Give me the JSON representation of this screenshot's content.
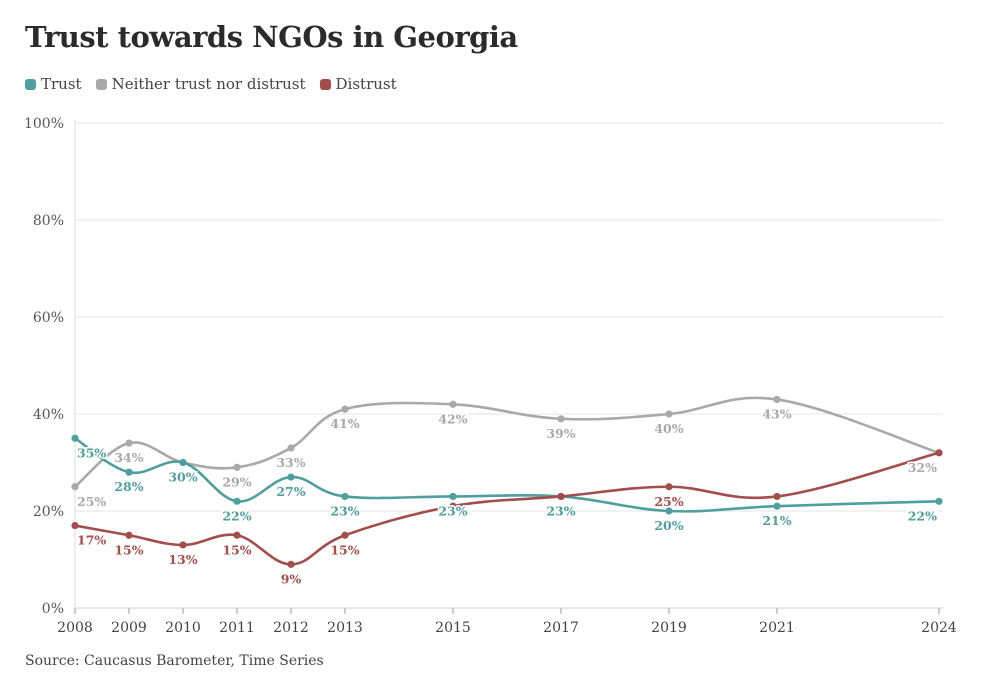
{
  "title": "Trust towards NGOs in Georgia",
  "source": "Source: Caucasus Barometer, Time Series",
  "chart_data": {
    "type": "line",
    "title": "Trust towards NGOs in Georgia",
    "xlabel": "",
    "ylabel": "",
    "ylim": [
      0,
      100
    ],
    "y_ticks": [
      0,
      20,
      40,
      60,
      80,
      100
    ],
    "y_tick_labels": [
      "0%",
      "20%",
      "40%",
      "60%",
      "80%",
      "100%"
    ],
    "x": [
      2008,
      2009,
      2010,
      2011,
      2012,
      2013,
      2015,
      2017,
      2019,
      2021,
      2024
    ],
    "x_labels": [
      "2008",
      "2009",
      "2010",
      "2011",
      "2012",
      "2013",
      "2015",
      "2017",
      "2019",
      "2021",
      "2024"
    ],
    "legend_position": "top-left",
    "series": [
      {
        "name": "Trust",
        "color": "#4e9f9e",
        "values": [
          35,
          28,
          30,
          22,
          27,
          23,
          23,
          23,
          20,
          21,
          22
        ],
        "labels": [
          "35%",
          "28%",
          "30%",
          "22%",
          "27%",
          "23%",
          "23%",
          "23%",
          "20%",
          "21%",
          "22%"
        ]
      },
      {
        "name": "Neither trust nor distrust",
        "color": "#a8a8ad",
        "values": [
          25,
          34,
          30,
          29,
          33,
          41,
          42,
          39,
          40,
          43,
          32
        ],
        "labels": [
          "25%",
          "34%",
          "",
          "29%",
          "33%",
          "41%",
          "42%",
          "39%",
          "40%",
          "43%",
          "32%"
        ]
      },
      {
        "name": "Distrust",
        "color": "#a24e4c",
        "values": [
          17,
          15,
          13,
          15,
          9,
          15,
          21,
          23,
          25,
          23,
          32
        ],
        "labels": [
          "17%",
          "15%",
          "13%",
          "15%",
          "9%",
          "15%",
          "",
          "",
          "25%",
          "",
          ""
        ]
      }
    ]
  }
}
